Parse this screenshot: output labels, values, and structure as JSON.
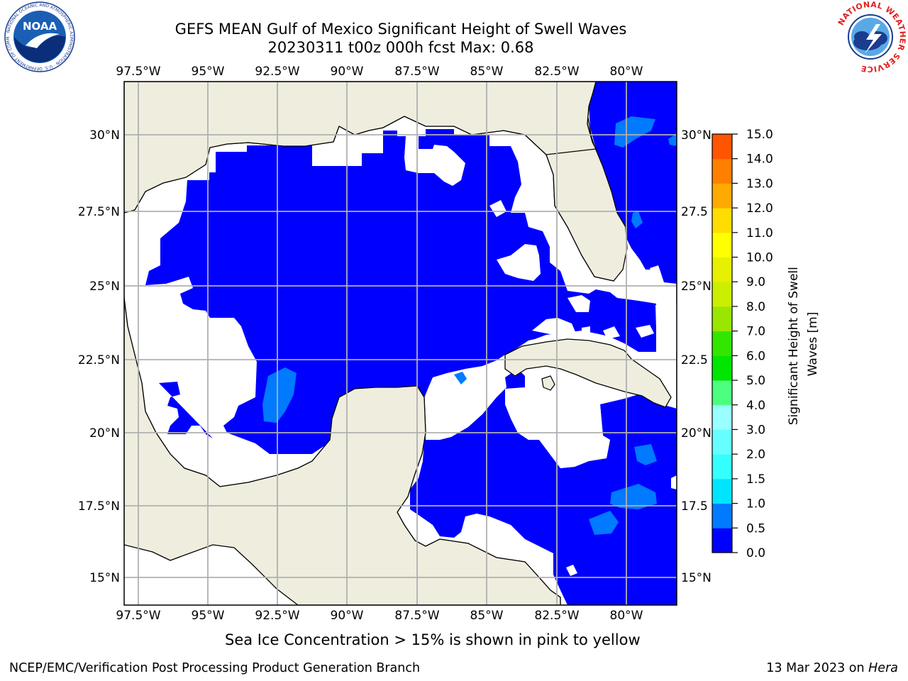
{
  "header": {
    "title_line1": "GEFS MEAN Gulf of Mexico Significant Height of Swell Waves",
    "title_line2": "20230311 t00z 000h fcst   Max: 0.68"
  },
  "logos": {
    "noaa_text": "NOAA",
    "noaa_ring_text": "NATIONAL OCEANIC AND ATMOSPHERIC ADMINISTRATION · U.S. DEPARTMENT OF COMMERCE",
    "nws_ring_text": "NATIONAL WEATHER SERVICE"
  },
  "map": {
    "lon_ticks": [
      "97.5°W",
      "95°W",
      "92.5°W",
      "90°W",
      "87.5°W",
      "85°W",
      "82.5°W",
      "80°W"
    ],
    "lat_ticks": [
      "30°N",
      "27.5°N",
      "25°N",
      "22.5°N",
      "20°N",
      "17.5°N",
      "15°N"
    ],
    "lat_ticks_right": [
      "30°N",
      "27.5",
      "25°N",
      "22.5",
      "20°N",
      "17.5",
      "15°N"
    ],
    "colors": {
      "land": "#efedde",
      "ocean_low": "#0000ff",
      "ocean_mid": "#007aff",
      "masked": "#ffffff",
      "grid": "#b0b0b0"
    }
  },
  "colorbar": {
    "label": "Significant Height of Swell Waves [m]",
    "tick_labels": [
      "0.0",
      "0.5",
      "1.0",
      "1.5",
      "2.0",
      "3.0",
      "4.0",
      "5.0",
      "6.0",
      "7.0",
      "8.0",
      "9.0",
      "10.0",
      "11.0",
      "12.0",
      "13.0",
      "14.0",
      "15.0"
    ],
    "colors": [
      "#0000ff",
      "#007aff",
      "#00e5ff",
      "#33ffff",
      "#66ffff",
      "#99ffff",
      "#4cff7f",
      "#00e600",
      "#33e600",
      "#99e600",
      "#ccee00",
      "#e6f000",
      "#ffff00",
      "#ffdd00",
      "#ffaa00",
      "#ff8000",
      "#ff5500",
      "#ff2a00",
      "#ff0000"
    ]
  },
  "footer": {
    "note": "Sea Ice Concentration > 15% is shown in pink to yellow",
    "credit": "NCEP/EMC/Verification Post Processing Product Generation Branch",
    "date": "13 Mar 2023 on ",
    "machine": "Hera"
  }
}
